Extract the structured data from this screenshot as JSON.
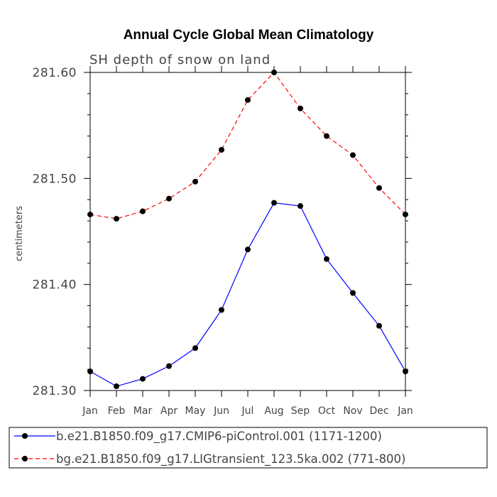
{
  "chart_data": {
    "type": "line",
    "title": "Annual Cycle Global Mean Climatology",
    "subtitle": "SH depth of snow on land",
    "xlabel": "",
    "ylabel": "centimeters",
    "categories": [
      "Jan",
      "Feb",
      "Mar",
      "Apr",
      "May",
      "Jun",
      "Jul",
      "Aug",
      "Sep",
      "Oct",
      "Nov",
      "Dec",
      "Jan"
    ],
    "ylim": [
      281.3,
      281.6
    ],
    "yticks": [
      "281.30",
      "281.40",
      "281.50",
      "281.60"
    ],
    "series": [
      {
        "name": "b.e21.B1850.f09_g17.CMIP6-piControl.001 (1171-1200)",
        "color": "#0000ff",
        "dash": "solid",
        "values": [
          281.318,
          281.304,
          281.311,
          281.323,
          281.34,
          281.376,
          281.433,
          281.477,
          281.474,
          281.424,
          281.392,
          281.361,
          281.318
        ]
      },
      {
        "name": "bg.e21.B1850.f09_g17.LIGtransient_123.5ka.002 (771-800)",
        "color": "#ff0000",
        "dash": "dashed",
        "values": [
          281.466,
          281.462,
          281.469,
          281.481,
          281.497,
          281.527,
          281.574,
          281.6,
          281.566,
          281.54,
          281.522,
          281.491,
          281.466
        ]
      }
    ],
    "grid": false,
    "legend_position": "bottom"
  }
}
